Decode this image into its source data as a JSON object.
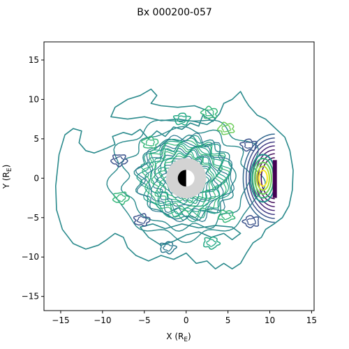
{
  "chart_data": {
    "type": "contour",
    "title": "Bx 000200-057",
    "xlabel": "X (R",
    "xlabel_sub": "E",
    "ylabel": "Y (R",
    "ylabel_sub": "E",
    "label_close": ")",
    "xlim": [
      -17,
      15.3
    ],
    "ylim": [
      -16.8,
      17.3
    ],
    "xticks": [
      -15,
      -10,
      -5,
      0,
      5,
      10,
      15
    ],
    "xtick_labels": [
      "−15",
      "−10",
      "−5",
      "0",
      "5",
      "10",
      "15"
    ],
    "yticks": [
      -15,
      -10,
      -5,
      0,
      5,
      10,
      15
    ],
    "ytick_labels": [
      "−15",
      "−10",
      "−5",
      "0",
      "5",
      "10",
      "15"
    ],
    "grid": false,
    "colormap": "viridis",
    "earth": {
      "x": 0,
      "y": 0,
      "radius": 1,
      "shadow_radius": 2.4,
      "day_color": "#ffffff",
      "night_color": "#000000",
      "shadow_color": "#d3d3d3"
    },
    "background_level_color": "#2a8a8c",
    "contour_groups": [
      {
        "name": "outer-envelope",
        "color": "#2a8a8c",
        "points": [
          [
            -15.5,
            -4
          ],
          [
            -15.6,
            -1
          ],
          [
            -15.2,
            3
          ],
          [
            -14.5,
            5.5
          ],
          [
            -13.5,
            6.3
          ],
          [
            -12.5,
            6
          ],
          [
            -12.8,
            4.5
          ],
          [
            -12,
            3.5
          ],
          [
            -11,
            3.2
          ],
          [
            -9.5,
            3.8
          ],
          [
            -8.5,
            4.3
          ],
          [
            -8.8,
            5.3
          ],
          [
            -7.5,
            5.8
          ],
          [
            -6.5,
            5.5
          ],
          [
            -5.5,
            6.2
          ],
          [
            -4.5,
            5
          ],
          [
            -3.5,
            6
          ],
          [
            -2.5,
            5.3
          ],
          [
            -1.5,
            6.5
          ],
          [
            -0.5,
            6.2
          ],
          [
            0.5,
            7
          ],
          [
            1.5,
            6.6
          ],
          [
            2,
            8
          ],
          [
            3.2,
            7.2
          ],
          [
            4,
            8.2
          ],
          [
            4.5,
            9.5
          ],
          [
            5.5,
            10
          ],
          [
            6.5,
            11
          ],
          [
            7,
            10
          ],
          [
            7.5,
            9.2
          ],
          [
            8.5,
            8
          ],
          [
            9.5,
            7.5
          ],
          [
            10.2,
            6.8
          ],
          [
            11,
            6
          ],
          [
            11.8,
            5.2
          ],
          [
            12.4,
            3.5
          ],
          [
            12.8,
            1
          ],
          [
            12.7,
            -1.5
          ],
          [
            12.3,
            -3.5
          ],
          [
            11.5,
            -5
          ],
          [
            10.5,
            -5.8
          ],
          [
            9.5,
            -6.5
          ],
          [
            9,
            -7.5
          ],
          [
            8,
            -8.2
          ],
          [
            7.2,
            -9.5
          ],
          [
            6.5,
            -10.8
          ],
          [
            5.5,
            -11.5
          ],
          [
            4.5,
            -10.8
          ],
          [
            3.5,
            -11.5
          ],
          [
            2.5,
            -10.5
          ],
          [
            1.2,
            -10.8
          ],
          [
            0,
            -9.5
          ],
          [
            -1.5,
            -10.3
          ],
          [
            -3,
            -9.8
          ],
          [
            -4.5,
            -10.5
          ],
          [
            -6,
            -9.8
          ],
          [
            -7,
            -8.8
          ],
          [
            -7.5,
            -7.5
          ],
          [
            -8.5,
            -7
          ],
          [
            -9.5,
            -7.8
          ],
          [
            -10.5,
            -8.5
          ],
          [
            -12,
            -9
          ],
          [
            -13.5,
            -8.3
          ],
          [
            -14.8,
            -6.5
          ],
          [
            -15.5,
            -4
          ]
        ]
      },
      {
        "name": "upper-wisp",
        "color": "#2a8a8c",
        "points": [
          [
            -9,
            7.8
          ],
          [
            -8.5,
            9
          ],
          [
            -7,
            10
          ],
          [
            -5.5,
            10.5
          ],
          [
            -4.2,
            11.3
          ],
          [
            -3.5,
            10.5
          ],
          [
            -4.2,
            9.5
          ],
          [
            -3,
            9.2
          ],
          [
            -1,
            9
          ],
          [
            1,
            9.2
          ],
          [
            2.5,
            8.6
          ],
          [
            3.5,
            7.5
          ],
          [
            2.5,
            6.8
          ],
          [
            1,
            7.2
          ],
          [
            -1,
            7.5
          ],
          [
            -3,
            7.3
          ],
          [
            -5,
            7.8
          ],
          [
            -7,
            7.5
          ],
          [
            -9,
            7.8
          ]
        ]
      },
      {
        "name": "lower-wisp",
        "color": "#2a8a8c",
        "points": [
          [
            -5.5,
            -6.2
          ],
          [
            -4.5,
            -7.5
          ],
          [
            -3,
            -8.5
          ],
          [
            -1.5,
            -8
          ],
          [
            0,
            -7.2
          ],
          [
            1.5,
            -6.8
          ],
          [
            3,
            -7.5
          ],
          [
            4.5,
            -7
          ],
          [
            5.5,
            -7.8
          ],
          [
            6.5,
            -7
          ],
          [
            5.5,
            -6.2
          ],
          [
            3.5,
            -6
          ],
          [
            1.5,
            -6.3
          ],
          [
            -0.5,
            -5.8
          ],
          [
            -2.5,
            -6.4
          ],
          [
            -4,
            -5.8
          ],
          [
            -5.5,
            -6.2
          ]
        ]
      }
    ],
    "dayside_levels": [
      {
        "rx": 4.2,
        "ry": 5.6,
        "color": "#31678e"
      },
      {
        "rx": 3.8,
        "ry": 5.1,
        "color": "#3b528b"
      },
      {
        "rx": 3.4,
        "ry": 4.6,
        "color": "#433e85"
      },
      {
        "rx": 3.0,
        "ry": 4.1,
        "color": "#482878"
      },
      {
        "rx": 2.6,
        "ry": 3.6,
        "color": "#481b6d"
      },
      {
        "rx": 2.2,
        "ry": 3.1,
        "color": "#440f5c"
      },
      {
        "rx": 1.8,
        "ry": 2.6,
        "color": "#440154"
      }
    ],
    "dayside_peak": {
      "x": 9.2,
      "y": 0,
      "color_levels": [
        "#21918c",
        "#35b779",
        "#6ccd5a",
        "#b5de2b",
        "#fde725"
      ]
    },
    "dark_band": {
      "x": 10.6,
      "y_range": [
        -2.5,
        2.3
      ],
      "color": "#440154"
    },
    "inner_ring_levels": [
      "#1f9e89",
      "#2a788e",
      "#35b779",
      "#22a884"
    ],
    "small_blobs": [
      {
        "x": -8,
        "y": 2.3,
        "color": "#3b528b"
      },
      {
        "x": -7.8,
        "y": -2.5,
        "color": "#35b779"
      },
      {
        "x": -5.3,
        "y": -5.3,
        "color": "#3b528b"
      },
      {
        "x": -4.3,
        "y": 4.5,
        "color": "#35b779"
      },
      {
        "x": 2.8,
        "y": 8.3,
        "color": "#35b779"
      },
      {
        "x": 4.8,
        "y": 6.3,
        "color": "#6ccd5a"
      },
      {
        "x": 4.8,
        "y": -4.8,
        "color": "#35b779"
      },
      {
        "x": 3,
        "y": -8.2,
        "color": "#22a884"
      },
      {
        "x": -2.2,
        "y": -8.8,
        "color": "#2a788e"
      },
      {
        "x": -0.5,
        "y": 7.5,
        "color": "#22a884"
      },
      {
        "x": 7.5,
        "y": 4.2,
        "color": "#3b528b"
      },
      {
        "x": 7.8,
        "y": -5.5,
        "color": "#3b528b"
      }
    ]
  }
}
